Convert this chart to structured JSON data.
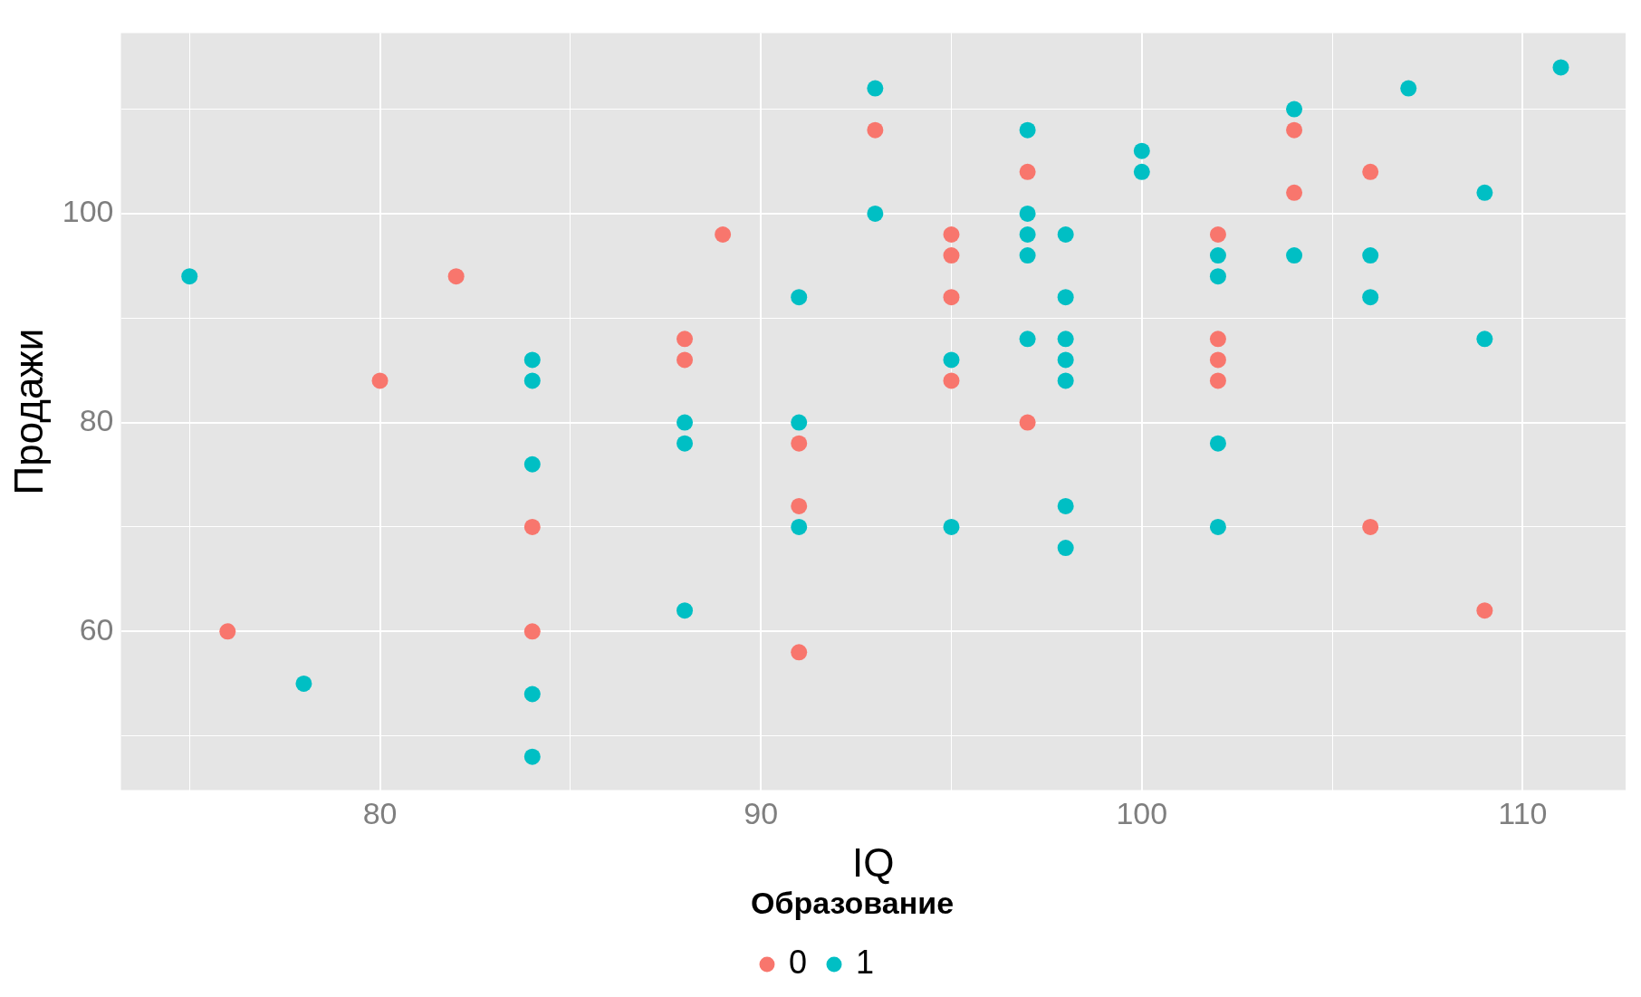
{
  "chart_data": {
    "type": "scatter",
    "xlabel": "IQ",
    "ylabel": "Продажи",
    "legend_title": "Образование",
    "legend": "bottom",
    "grid": true,
    "marker": "circle",
    "xlim": [
      73.2,
      112.7
    ],
    "xticks": [
      {
        "value": 75,
        "label": null
      },
      80,
      {
        "value": 85,
        "label": null
      },
      90,
      {
        "value": 95,
        "label": null
      },
      100,
      {
        "value": 105,
        "label": null
      },
      110
    ],
    "ylim": [
      44.8,
      117.3
    ],
    "yticks": [
      {
        "value": 50,
        "label": null
      },
      60,
      {
        "value": 70,
        "label": null
      },
      80,
      {
        "value": 90,
        "label": null
      },
      100,
      {
        "value": 110,
        "label": null
      }
    ],
    "series": [
      {
        "name": "0",
        "color": "#f8766d",
        "x": [
          76,
          80,
          82,
          84,
          84,
          88,
          88,
          89,
          91,
          91,
          91,
          93,
          95,
          95,
          95,
          95,
          97,
          97,
          102,
          102,
          102,
          102,
          104,
          104,
          106,
          106,
          109
        ],
        "values": [
          60,
          84,
          94,
          70,
          60,
          88,
          86,
          98,
          78,
          72,
          58,
          108,
          98,
          96,
          92,
          84,
          104,
          80,
          98,
          88,
          86,
          84,
          108,
          102,
          104,
          70,
          62
        ]
      },
      {
        "name": "1",
        "color": "#00bfc4",
        "x": [
          75,
          78,
          84,
          84,
          84,
          84,
          84,
          88,
          88,
          88,
          91,
          91,
          91,
          93,
          93,
          95,
          95,
          97,
          97,
          97,
          97,
          97,
          98,
          98,
          98,
          98,
          98,
          98,
          98,
          100,
          100,
          102,
          102,
          102,
          102,
          104,
          104,
          106,
          106,
          107,
          109,
          109,
          111
        ],
        "values": [
          94,
          55,
          86,
          84,
          76,
          54,
          48,
          80,
          78,
          62,
          92,
          80,
          70,
          112,
          100,
          86,
          70,
          108,
          100,
          98,
          96,
          88,
          98,
          92,
          88,
          86,
          84,
          72,
          68,
          106,
          104,
          96,
          94,
          78,
          70,
          110,
          96,
          96,
          92,
          112,
          102,
          88,
          114
        ]
      }
    ]
  }
}
